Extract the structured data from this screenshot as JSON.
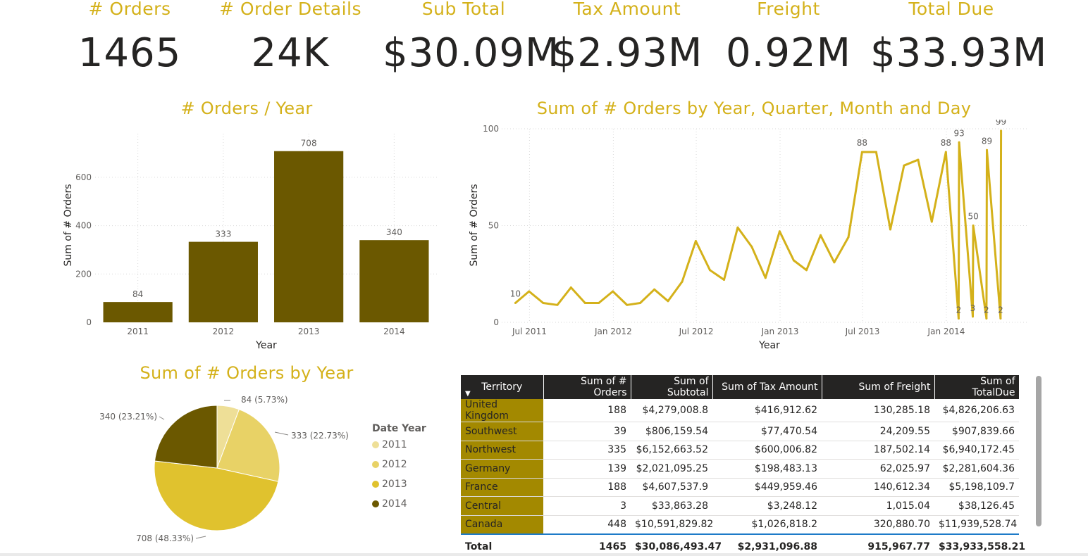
{
  "kpis": [
    {
      "title": "# Orders",
      "value": "1465"
    },
    {
      "title": "# Order Details",
      "value": "24K"
    },
    {
      "title": "Sub Total",
      "value": "$30.09M"
    },
    {
      "title": "Tax Amount",
      "value": "$2.93M"
    },
    {
      "title": "Freight",
      "value": "0.92M"
    },
    {
      "title": "Total Due",
      "value": "$33.93M"
    }
  ],
  "colors": {
    "accent": "#D4B11A",
    "bar": "#6B5800",
    "line": "#D4B11A",
    "territory": "#A38900",
    "header": "#252423"
  },
  "bar_chart": {
    "title": "# Orders / Year",
    "chart_data": {
      "type": "bar",
      "categories": [
        "2011",
        "2012",
        "2013",
        "2014"
      ],
      "values": [
        84,
        333,
        708,
        340
      ],
      "xlabel": "Year",
      "ylabel": "Sum of # Orders",
      "yticks": [
        "0",
        "200",
        "400",
        "600"
      ],
      "ylim": [
        0,
        780
      ]
    }
  },
  "line_chart": {
    "title": "Sum of # Orders by Year, Quarter, Month and Day",
    "chart_data": {
      "type": "line",
      "xlabel": "Year",
      "ylabel": "Sum of # Orders",
      "yticks": [
        "0",
        "50",
        "100"
      ],
      "ylim": [
        0,
        100
      ],
      "xticks": [
        "Jul 2011",
        "Jan 2012",
        "Jul 2012",
        "Jan 2013",
        "Jul 2013",
        "Jan 2014"
      ],
      "xlim": [
        "2011-05-01",
        "2014-07-01"
      ],
      "points": [
        [
          "2011-05-31",
          10
        ],
        [
          "2011-06-30",
          16
        ],
        [
          "2011-07-31",
          10
        ],
        [
          "2011-08-31",
          9
        ],
        [
          "2011-09-30",
          18
        ],
        [
          "2011-10-31",
          10
        ],
        [
          "2011-11-30",
          10
        ],
        [
          "2011-12-31",
          16
        ],
        [
          "2012-01-31",
          9
        ],
        [
          "2012-02-29",
          10
        ],
        [
          "2012-03-31",
          17
        ],
        [
          "2012-04-30",
          11
        ],
        [
          "2012-05-31",
          21
        ],
        [
          "2012-06-30",
          42
        ],
        [
          "2012-07-31",
          27
        ],
        [
          "2012-08-31",
          22
        ],
        [
          "2012-09-30",
          49
        ],
        [
          "2012-10-31",
          39
        ],
        [
          "2012-11-30",
          23
        ],
        [
          "2012-12-31",
          47
        ],
        [
          "2013-01-31",
          32
        ],
        [
          "2013-02-28",
          27
        ],
        [
          "2013-03-31",
          45
        ],
        [
          "2013-04-30",
          31
        ],
        [
          "2013-05-31",
          44
        ],
        [
          "2013-06-30",
          88
        ],
        [
          "2013-07-31",
          88
        ],
        [
          "2013-08-31",
          48
        ],
        [
          "2013-09-30",
          81
        ],
        [
          "2013-10-31",
          84
        ],
        [
          "2013-11-30",
          52
        ],
        [
          "2013-12-31",
          88
        ],
        [
          "2014-01-28",
          2
        ],
        [
          "2014-01-29",
          93
        ],
        [
          "2014-02-28",
          3
        ],
        [
          "2014-03-01",
          50
        ],
        [
          "2014-03-30",
          2
        ],
        [
          "2014-03-31",
          89
        ],
        [
          "2014-04-30",
          2
        ],
        [
          "2014-05-01",
          99
        ]
      ],
      "data_labels": [
        {
          "date": "2011-05-31",
          "value": 10,
          "text": "10"
        },
        {
          "date": "2013-06-30",
          "value": 88,
          "text": "88"
        },
        {
          "date": "2013-12-31",
          "value": 88,
          "text": "88"
        },
        {
          "date": "2014-01-29",
          "value": 93,
          "text": "93"
        },
        {
          "date": "2014-03-01",
          "value": 50,
          "text": "50"
        },
        {
          "date": "2014-03-31",
          "value": 89,
          "text": "89"
        },
        {
          "date": "2014-05-01",
          "value": 99,
          "text": "99"
        },
        {
          "date": "2014-01-28",
          "value": 2,
          "text": "2"
        },
        {
          "date": "2014-02-28",
          "value": 3,
          "text": "3"
        },
        {
          "date": "2014-03-30",
          "value": 2,
          "text": "2"
        },
        {
          "date": "2014-04-30",
          "value": 2,
          "text": "2"
        }
      ]
    }
  },
  "pie_chart": {
    "title": "Sum of # Orders by Year",
    "chart_data": {
      "type": "pie",
      "slices": [
        {
          "name": "2011",
          "value": 84,
          "label": "84 (5.73%)",
          "color": "#EEDF97"
        },
        {
          "name": "2012",
          "value": 333,
          "label": "333 (22.73%)",
          "color": "#E8D266"
        },
        {
          "name": "2013",
          "value": 708,
          "label": "708 (48.33%)",
          "color": "#E0C22E"
        },
        {
          "name": "2014",
          "value": 340,
          "label": "340 (23.21%)",
          "color": "#6B5800"
        }
      ]
    },
    "legend_title": "Date Year"
  },
  "table": {
    "columns": [
      "Territory",
      "Sum of # Orders",
      "Sum of Subtotal",
      "Sum of Tax Amount",
      "Sum of Freight",
      "Sum of TotalDue"
    ],
    "rows": [
      [
        "United Kingdom",
        "188",
        "$4,279,008.8",
        "$416,912.62",
        "130,285.18",
        "$4,826,206.63"
      ],
      [
        "Southwest",
        "39",
        "$806,159.54",
        "$77,470.54",
        "24,209.55",
        "$907,839.66"
      ],
      [
        "Northwest",
        "335",
        "$6,152,663.52",
        "$600,006.82",
        "187,502.14",
        "$6,940,172.45"
      ],
      [
        "Germany",
        "139",
        "$2,021,095.25",
        "$198,483.13",
        "62,025.97",
        "$2,281,604.36"
      ],
      [
        "France",
        "188",
        "$4,607,537.9",
        "$449,959.46",
        "140,612.34",
        "$5,198,109.7"
      ],
      [
        "Central",
        "3",
        "$33,863.28",
        "$3,248.12",
        "1,015.04",
        "$38,126.45"
      ],
      [
        "Canada",
        "448",
        "$10,591,829.82",
        "$1,026,818.2",
        "320,880.70",
        "$11,939,528.74"
      ]
    ],
    "total": [
      "Total",
      "1465",
      "$30,086,493.47",
      "$2,931,096.88",
      "915,967.77",
      "$33,933,558.21"
    ]
  }
}
